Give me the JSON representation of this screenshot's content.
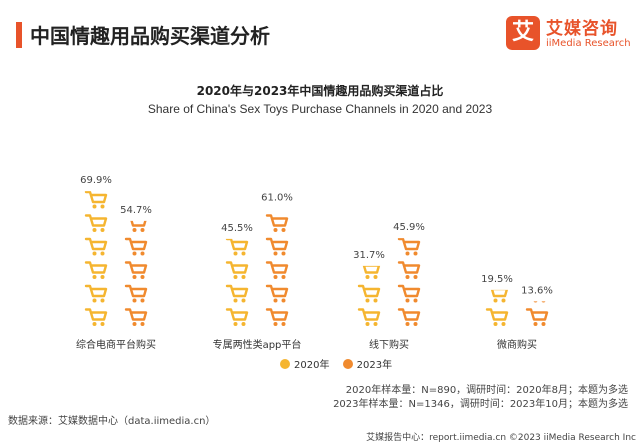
{
  "header": {
    "title": "中国情趣用品购买渠道分析",
    "logo": {
      "icon_text": "艾",
      "name_cn": "艾媒咨询",
      "name_en": "iiMedia Research"
    }
  },
  "chart_data": {
    "type": "bar",
    "title": "2020年与2023年中国情趣用品购买渠道占比",
    "subtitle": "Share of China's Sex Toys Purchase Channels in 2020 and 2023",
    "categories": [
      "综合电商平台购买",
      "专属两性类app平台",
      "线下购买",
      "微商购买"
    ],
    "series": [
      {
        "name": "2020年",
        "values": [
          69.9,
          45.5,
          31.7,
          19.5
        ],
        "labels": [
          "69.9%",
          "45.5%",
          "31.7%",
          "19.5%"
        ]
      },
      {
        "name": "2023年",
        "values": [
          54.7,
          61.0,
          45.9,
          13.6
        ],
        "labels": [
          "54.7%",
          "61.0%",
          "45.9%",
          "13.6%"
        ]
      }
    ],
    "unit": "%",
    "mark": "shopping-cart-icons",
    "colors": {
      "2020年": "#f5b530",
      "2023年": "#f08a2e"
    },
    "legend_position": "bottom-center"
  },
  "footer": {
    "source": "数据来源：艾媒数据中心（data.iimedia.cn）",
    "sample_notes": [
      "2020年样本量：N=890，调研时间：2020年8月；本题为多选",
      "2023年样本量：N=1346，调研时间：2023年10月；本题为多选"
    ],
    "report_line": "艾媒报告中心：report.iimedia.cn ©2023  iiMedia Research  Inc"
  }
}
